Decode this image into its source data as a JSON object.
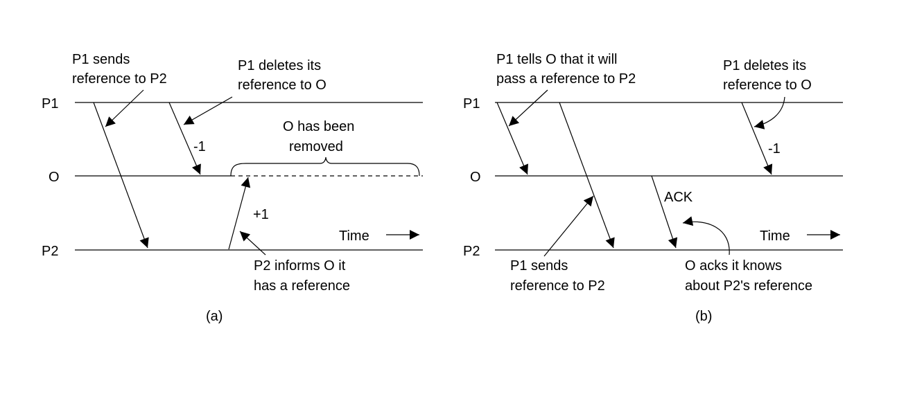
{
  "panel_a": {
    "caption": "(a)",
    "process_labels": {
      "p1": "P1",
      "o": "O",
      "p2": "P2"
    },
    "annotations": {
      "p1_sends_line1": "P1 sends",
      "p1_sends_line2": "reference to P2",
      "p1_deletes_line1": "P1 deletes its",
      "p1_deletes_line2": "reference to O",
      "minus_one": "-1",
      "removed_line1": "O has been",
      "removed_line2": "removed",
      "plus_one": "+1",
      "time": "Time",
      "p2_informs_line1": "P2 informs O it",
      "p2_informs_line2": "has a reference"
    }
  },
  "panel_b": {
    "caption": "(b)",
    "process_labels": {
      "p1": "P1",
      "o": "O",
      "p2": "P2"
    },
    "annotations": {
      "p1_tells_line1": "P1 tells O that it will",
      "p1_tells_line2": "pass a reference to P2",
      "p1_deletes_line1": "P1 deletes its",
      "p1_deletes_line2": "reference to O",
      "minus_one": "-1",
      "ack": "ACK",
      "time": "Time",
      "p1_sends_line1": "P1 sends",
      "p1_sends_line2": "reference to P2",
      "o_acks_line1": "O acks it knows",
      "o_acks_line2": "about P2's reference"
    }
  }
}
